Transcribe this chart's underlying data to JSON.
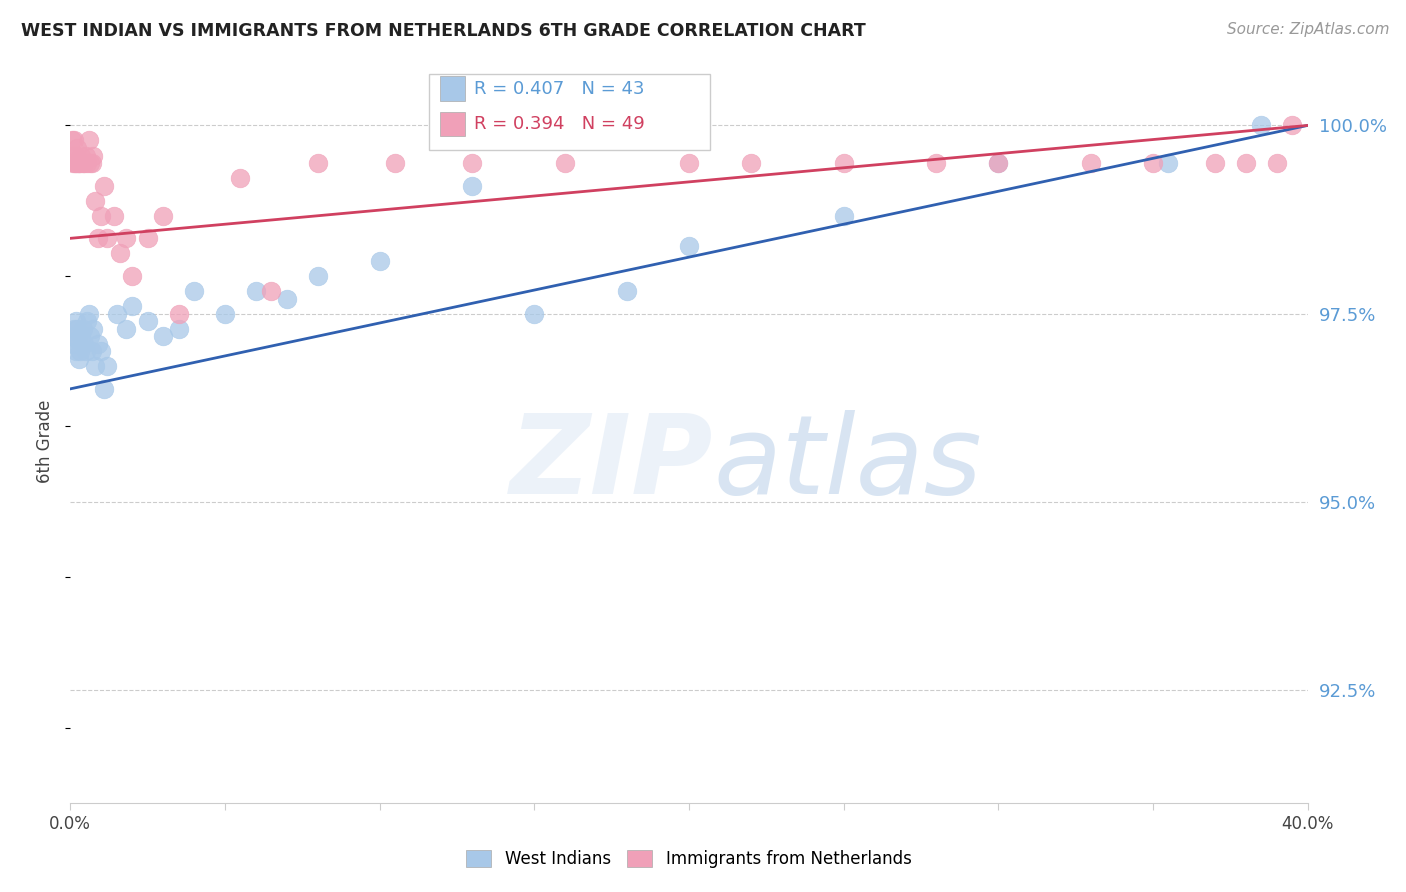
{
  "title": "WEST INDIAN VS IMMIGRANTS FROM NETHERLANDS 6TH GRADE CORRELATION CHART",
  "source": "Source: ZipAtlas.com",
  "ylabel": "6th Grade",
  "ylabel_right_ticks": [
    100.0,
    97.5,
    95.0,
    92.5
  ],
  "legend_label_blue": "West Indians",
  "legend_label_pink": "Immigrants from Netherlands",
  "blue_color": "#a8c8e8",
  "pink_color": "#f0a0b8",
  "blue_line_color": "#3060b0",
  "pink_line_color": "#d04060",
  "blue_scatter_edge": "#a8c8e8",
  "pink_scatter_edge": "#f0a0b8",
  "xlim": [
    0.0,
    40.0
  ],
  "ylim": [
    91.0,
    100.6
  ],
  "blue_x": [
    0.08,
    0.12,
    0.15,
    0.18,
    0.2,
    0.22,
    0.25,
    0.28,
    0.3,
    0.35,
    0.4,
    0.45,
    0.5,
    0.55,
    0.6,
    0.65,
    0.7,
    0.75,
    0.8,
    0.9,
    1.0,
    1.1,
    1.2,
    1.5,
    1.8,
    2.0,
    2.5,
    3.0,
    3.5,
    4.0,
    5.0,
    6.0,
    7.0,
    8.0,
    10.0,
    13.0,
    15.0,
    18.0,
    20.0,
    25.0,
    30.0,
    35.5,
    38.5
  ],
  "blue_y": [
    97.1,
    97.3,
    97.2,
    97.0,
    97.4,
    97.3,
    97.15,
    96.9,
    97.0,
    97.2,
    97.3,
    97.1,
    97.0,
    97.4,
    97.5,
    97.2,
    97.0,
    97.3,
    96.8,
    97.1,
    97.0,
    96.5,
    96.8,
    97.5,
    97.3,
    97.6,
    97.4,
    97.2,
    97.3,
    97.8,
    97.5,
    97.8,
    97.7,
    98.0,
    98.2,
    99.2,
    97.5,
    97.8,
    98.4,
    98.8,
    99.5,
    99.5,
    100.0
  ],
  "pink_x": [
    0.05,
    0.08,
    0.1,
    0.12,
    0.15,
    0.18,
    0.2,
    0.22,
    0.25,
    0.28,
    0.3,
    0.35,
    0.4,
    0.45,
    0.5,
    0.55,
    0.6,
    0.65,
    0.7,
    0.75,
    0.8,
    0.9,
    1.0,
    1.1,
    1.2,
    1.4,
    1.6,
    1.8,
    2.0,
    2.5,
    3.0,
    3.5,
    5.5,
    6.5,
    8.0,
    10.5,
    13.0,
    16.0,
    20.0,
    22.0,
    25.0,
    28.0,
    30.0,
    33.0,
    35.0,
    37.0,
    38.0,
    39.0,
    39.5
  ],
  "pink_y": [
    99.8,
    99.5,
    99.6,
    99.8,
    99.5,
    99.6,
    99.5,
    99.7,
    99.5,
    99.5,
    99.5,
    99.6,
    99.5,
    99.5,
    99.6,
    99.5,
    99.8,
    99.5,
    99.5,
    99.6,
    99.0,
    98.5,
    98.8,
    99.2,
    98.5,
    98.8,
    98.3,
    98.5,
    98.0,
    98.5,
    98.8,
    97.5,
    99.3,
    97.8,
    99.5,
    99.5,
    99.5,
    99.5,
    99.5,
    99.5,
    99.5,
    99.5,
    99.5,
    99.5,
    99.5,
    99.5,
    99.5,
    99.5,
    100.0
  ],
  "blue_line_x0": 0.0,
  "blue_line_y0": 96.5,
  "blue_line_x1": 40.0,
  "blue_line_y1": 100.0,
  "pink_line_x0": 0.0,
  "pink_line_y0": 98.5,
  "pink_line_x1": 40.0,
  "pink_line_y1": 100.0
}
